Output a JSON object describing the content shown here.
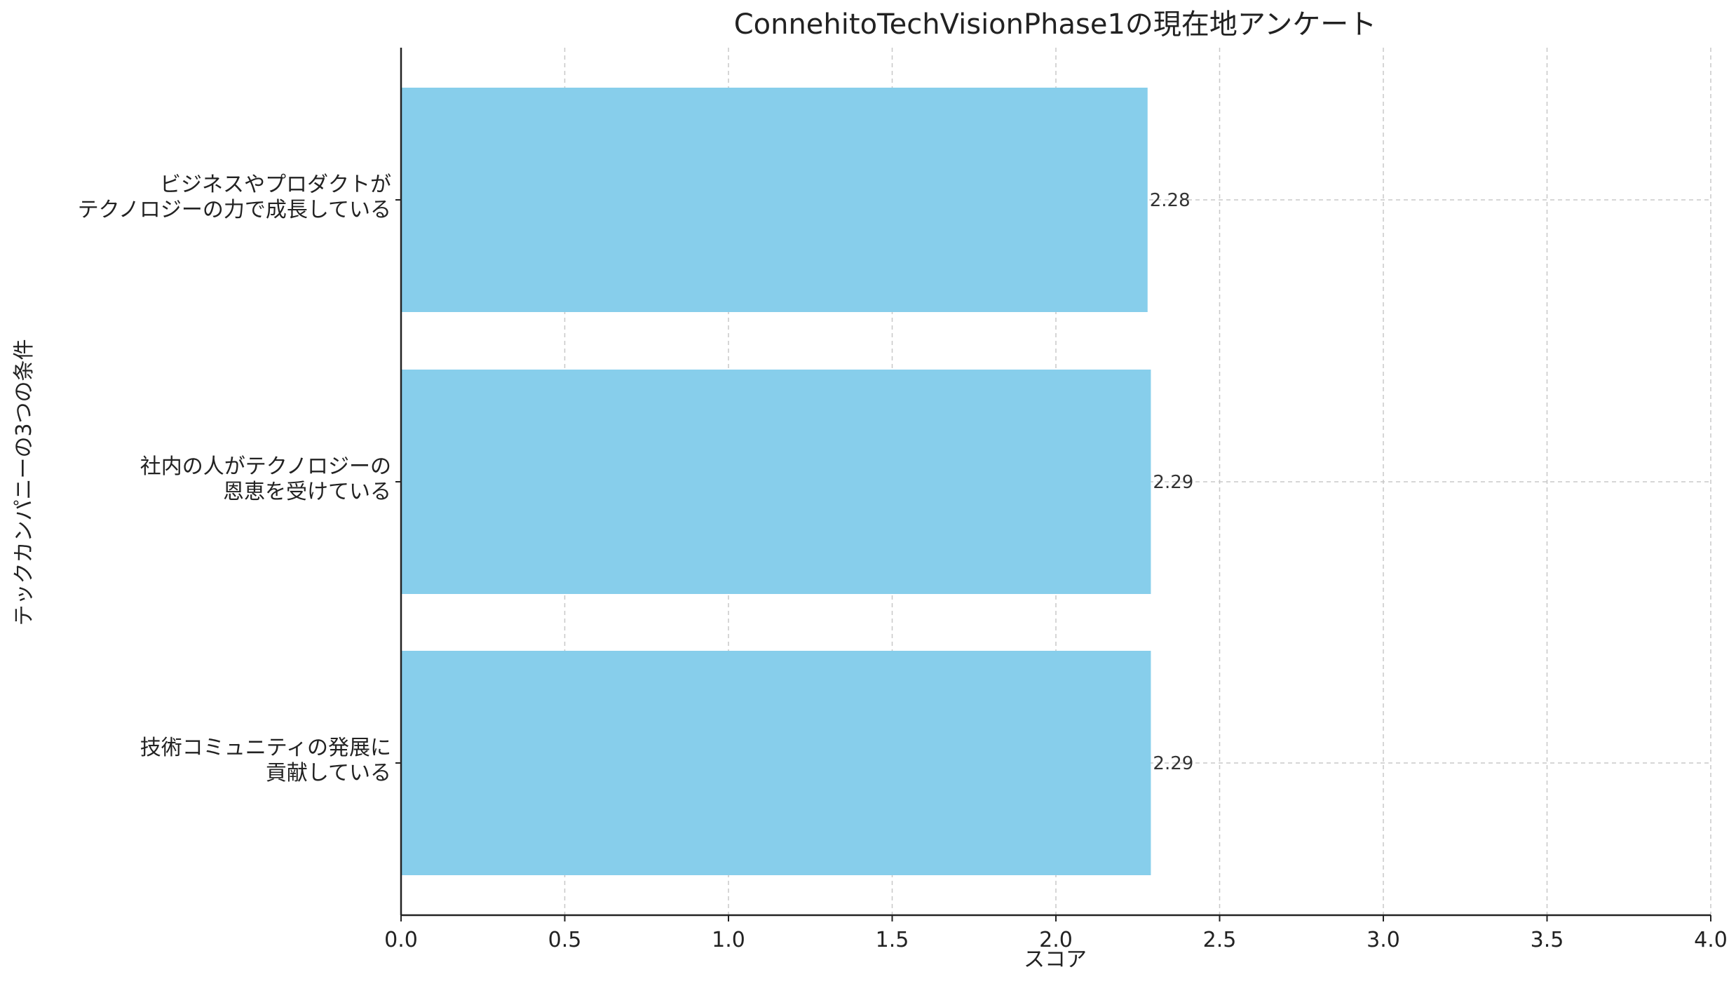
{
  "chart_data": {
    "type": "bar",
    "orientation": "horizontal",
    "title": "ConnehitoTechVisionPhase1の現在地アンケート",
    "xlabel": "スコア",
    "ylabel": "テックカンパニーの3つの条件",
    "categories": [
      [
        "ビジネスやプロダクトが",
        "テクノロジーの力で成長している"
      ],
      [
        "社内の人がテクノロジーの",
        "恩恵を受けている"
      ],
      [
        "技術コミュニティの発展に",
        "貢献している"
      ]
    ],
    "values": [
      2.28,
      2.29,
      2.29
    ],
    "value_labels": [
      "2.28",
      "2.29",
      "2.29"
    ],
    "xlim": [
      0,
      4
    ],
    "xticks": [
      "0.0",
      "0.5",
      "1.0",
      "1.5",
      "2.0",
      "2.5",
      "3.0",
      "3.5",
      "4.0"
    ],
    "grid": true,
    "bar_color": "#87ceeb"
  }
}
